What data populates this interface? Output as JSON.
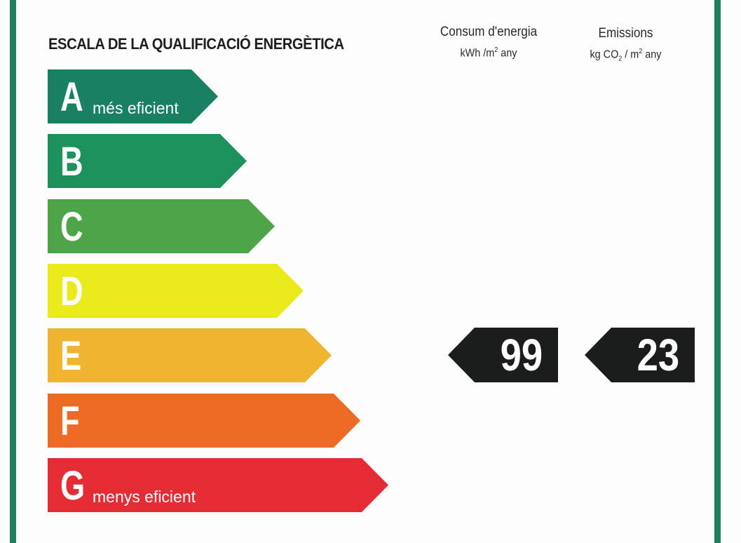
{
  "title": "ESCALA DE LA QUALIFICACIÓ ENERGÈTICA",
  "columns": {
    "energy": {
      "heading": "Consum d'energia",
      "unit_prefix": "kWh /m",
      "unit_exp": "2",
      "unit_suffix": " any"
    },
    "emissions": {
      "heading": "Emissions",
      "unit_prefix": "kg CO",
      "unit_sub": "2",
      "unit_mid": " / m",
      "unit_exp": "2",
      "unit_suffix": "  any"
    }
  },
  "bars": [
    {
      "letter": "A",
      "note": "més eficient",
      "color": "#1a8062"
    },
    {
      "letter": "B",
      "note": "",
      "color": "#1d915a"
    },
    {
      "letter": "C",
      "note": "",
      "color": "#4ea548"
    },
    {
      "letter": "D",
      "note": "",
      "color": "#eaea1a"
    },
    {
      "letter": "E",
      "note": "",
      "color": "#f0b530"
    },
    {
      "letter": "F",
      "note": "",
      "color": "#eb6b25"
    },
    {
      "letter": "G",
      "note": "menys eficient",
      "color": "#e52c34"
    }
  ],
  "rating": {
    "class": "E",
    "energy_value": "99",
    "emissions_value": "23"
  }
}
